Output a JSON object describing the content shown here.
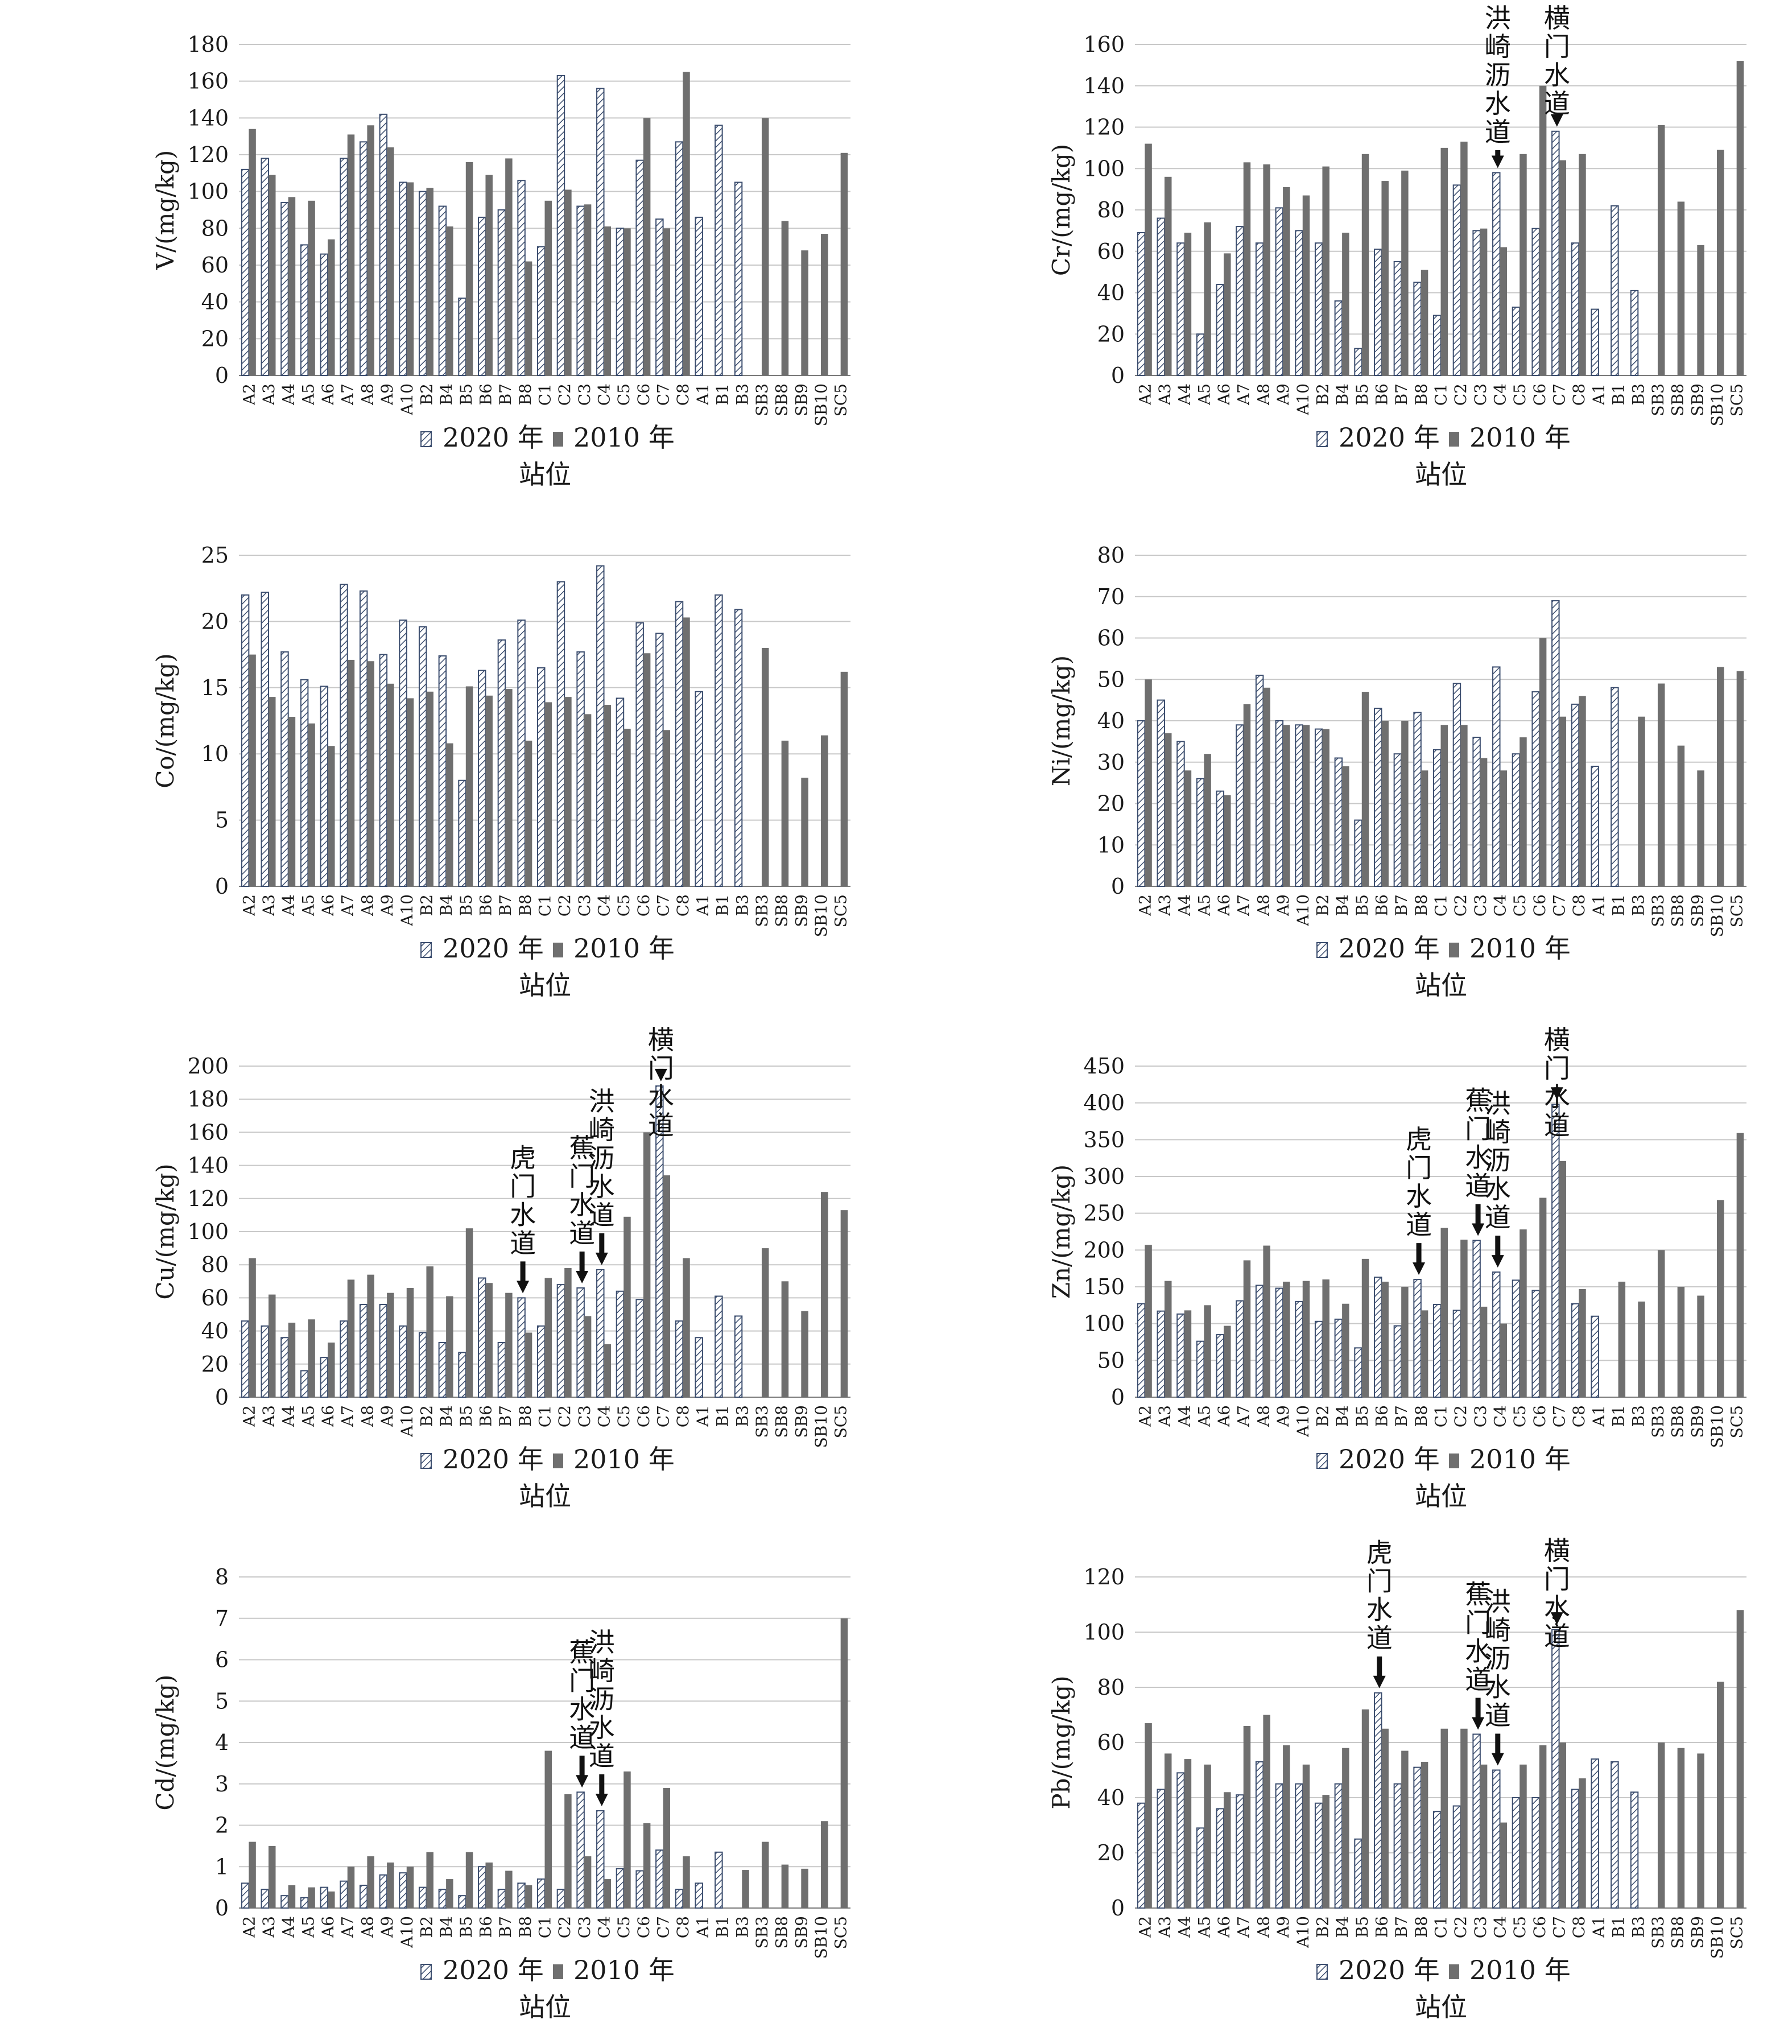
{
  "colors": {
    "bar_2020_fill": "#ffffff",
    "bar_2020_stroke": "#3b4d6e",
    "bar_2020_hatch": "#3b4d6e",
    "bar_2010": "#6f6f6f",
    "grid": "#c8c8c8",
    "text": "#1a1a1a",
    "arrow": "#111111"
  },
  "legend": {
    "s2020": "2020 年",
    "s2010": "2010 年"
  },
  "xlabel": "站位",
  "chart_data": [
    {
      "type": "bar",
      "ylabel": "V/(mg/kg)",
      "ylim": [
        0,
        180
      ],
      "yticks": [
        0,
        20,
        40,
        60,
        80,
        100,
        120,
        140,
        160,
        180
      ],
      "categories": [
        "A2",
        "A3",
        "A4",
        "A5",
        "A6",
        "A7",
        "A8",
        "A9",
        "A10",
        "B2",
        "B4",
        "B5",
        "B6",
        "B7",
        "B8",
        "C1",
        "C2",
        "C3",
        "C4",
        "C5",
        "C6",
        "C7",
        "C8",
        "A1",
        "B1",
        "B3",
        "SB3",
        "SB8",
        "SB9",
        "SB10",
        "SC5"
      ],
      "series": [
        {
          "name": "2020 年",
          "values": [
            112,
            118,
            94,
            71,
            66,
            118,
            127,
            142,
            105,
            100,
            92,
            42,
            86,
            90,
            106,
            70,
            163,
            92,
            156,
            80,
            117,
            85,
            127,
            86,
            136,
            105,
            null,
            null,
            null,
            null,
            null
          ]
        },
        {
          "name": "2010 年",
          "values": [
            134,
            109,
            97,
            95,
            74,
            131,
            136,
            124,
            105,
            102,
            81,
            116,
            109,
            118,
            62,
            95,
            101,
            93,
            81,
            80,
            140,
            80,
            165,
            null,
            null,
            null,
            140,
            84,
            68,
            77,
            121
          ]
        }
      ],
      "annotations": []
    },
    {
      "type": "bar",
      "ylabel": "Cr/(mg/kg)",
      "ylim": [
        0,
        160
      ],
      "yticks": [
        0,
        20,
        40,
        60,
        80,
        100,
        120,
        140,
        160
      ],
      "categories": [
        "A2",
        "A3",
        "A4",
        "A5",
        "A6",
        "A7",
        "A8",
        "A9",
        "A10",
        "B2",
        "B4",
        "B5",
        "B6",
        "B7",
        "B8",
        "C1",
        "C2",
        "C3",
        "C4",
        "C5",
        "C6",
        "C7",
        "C8",
        "A1",
        "B1",
        "B3",
        "SB3",
        "SB8",
        "SB9",
        "SB10",
        "SC5"
      ],
      "series": [
        {
          "name": "2020 年",
          "values": [
            69,
            76,
            64,
            20,
            44,
            72,
            64,
            81,
            70,
            64,
            36,
            13,
            61,
            55,
            45,
            29,
            92,
            70,
            98,
            33,
            71,
            118,
            64,
            32,
            82,
            41,
            null,
            null,
            null,
            null,
            null
          ]
        },
        {
          "name": "2010 年",
          "values": [
            112,
            96,
            69,
            74,
            59,
            103,
            102,
            91,
            87,
            101,
            69,
            107,
            94,
            99,
            51,
            110,
            113,
            71,
            62,
            107,
            140,
            104,
            107,
            null,
            null,
            null,
            121,
            84,
            63,
            109,
            152
          ]
        }
      ],
      "annotations": [
        {
          "text": "洪崎沥水道",
          "category": "C4"
        },
        {
          "text": "横门水道",
          "category": "C7"
        }
      ]
    },
    {
      "type": "bar",
      "ylabel": "Co/(mg/kg)",
      "ylim": [
        0,
        25
      ],
      "yticks": [
        0,
        5,
        10,
        15,
        20,
        25
      ],
      "categories": [
        "A2",
        "A3",
        "A4",
        "A5",
        "A6",
        "A7",
        "A8",
        "A9",
        "A10",
        "B2",
        "B4",
        "B5",
        "B6",
        "B7",
        "B8",
        "C1",
        "C2",
        "C3",
        "C4",
        "C5",
        "C6",
        "C7",
        "C8",
        "A1",
        "B1",
        "B3",
        "SB3",
        "SB8",
        "SB9",
        "SB10",
        "SC5"
      ],
      "series": [
        {
          "name": "2020 年",
          "values": [
            22.0,
            22.2,
            17.7,
            15.6,
            15.1,
            22.8,
            22.3,
            17.5,
            20.1,
            19.6,
            17.4,
            8.0,
            16.3,
            18.6,
            20.1,
            16.5,
            23.0,
            17.7,
            24.2,
            14.2,
            19.9,
            19.1,
            21.5,
            14.7,
            22.0,
            20.9,
            null,
            null,
            null,
            null,
            null
          ]
        },
        {
          "name": "2010 年",
          "values": [
            17.5,
            14.3,
            12.8,
            12.3,
            10.6,
            17.1,
            17.0,
            15.3,
            14.2,
            14.7,
            10.8,
            15.1,
            14.4,
            14.9,
            11.0,
            13.9,
            14.3,
            13.0,
            13.7,
            11.9,
            17.6,
            11.8,
            20.3,
            null,
            null,
            null,
            18.0,
            11.0,
            8.2,
            11.4,
            16.2
          ]
        }
      ],
      "annotations": []
    },
    {
      "type": "bar",
      "ylabel": "Ni/(mg/kg)",
      "ylim": [
        0,
        80
      ],
      "yticks": [
        0,
        10,
        20,
        30,
        40,
        50,
        60,
        70,
        80
      ],
      "categories": [
        "A2",
        "A3",
        "A4",
        "A5",
        "A6",
        "A7",
        "A8",
        "A9",
        "A10",
        "B2",
        "B4",
        "B5",
        "B6",
        "B7",
        "B8",
        "C1",
        "C2",
        "C3",
        "C4",
        "C5",
        "C6",
        "C7",
        "C8",
        "A1",
        "B1",
        "B3",
        "SB3",
        "SB8",
        "SB9",
        "SB10",
        "SC5"
      ],
      "series": [
        {
          "name": "2020 年",
          "values": [
            40,
            45,
            35,
            26,
            23,
            39,
            51,
            40,
            39,
            38,
            31,
            16,
            43,
            32,
            42,
            33,
            49,
            36,
            53,
            32,
            47,
            69,
            44,
            29,
            48,
            null,
            null,
            null,
            null,
            null,
            null
          ]
        },
        {
          "name": "2010 年",
          "values": [
            50,
            37,
            28,
            32,
            22,
            44,
            48,
            39,
            39,
            38,
            29,
            47,
            40,
            40,
            28,
            39,
            39,
            31,
            28,
            36,
            60,
            41,
            46,
            null,
            null,
            41,
            49,
            34,
            28,
            53,
            52
          ]
        }
      ],
      "annotations": []
    },
    {
      "type": "bar",
      "ylabel": "Cu/(mg/kg)",
      "ylim": [
        0,
        200
      ],
      "yticks": [
        0,
        20,
        40,
        60,
        80,
        100,
        120,
        140,
        160,
        180,
        200
      ],
      "categories": [
        "A2",
        "A3",
        "A4",
        "A5",
        "A6",
        "A7",
        "A8",
        "A9",
        "A10",
        "B2",
        "B4",
        "B5",
        "B6",
        "B7",
        "B8",
        "C1",
        "C2",
        "C3",
        "C4",
        "C5",
        "C6",
        "C7",
        "C8",
        "A1",
        "B1",
        "B3",
        "SB3",
        "SB8",
        "SB9",
        "SB10",
        "SC5"
      ],
      "series": [
        {
          "name": "2020 年",
          "values": [
            46,
            43,
            36,
            16,
            24,
            46,
            56,
            56,
            43,
            39,
            33,
            27,
            72,
            33,
            60,
            43,
            68,
            66,
            77,
            64,
            59,
            188,
            46,
            36,
            61,
            49,
            null,
            null,
            null,
            null,
            null
          ]
        },
        {
          "name": "2010 年",
          "values": [
            84,
            62,
            45,
            47,
            33,
            71,
            74,
            63,
            66,
            79,
            61,
            102,
            69,
            63,
            39,
            72,
            78,
            49,
            32,
            109,
            160,
            134,
            84,
            null,
            null,
            null,
            90,
            70,
            52,
            124,
            113
          ]
        }
      ],
      "annotations": [
        {
          "text": "虎门水道",
          "category": "B8"
        },
        {
          "text": "蕉门水道",
          "category": "C3"
        },
        {
          "text": "洪崎沥水道",
          "category": "C4"
        },
        {
          "text": "横门水道",
          "category": "C7"
        }
      ]
    },
    {
      "type": "bar",
      "ylabel": "Zn/(mg/kg)",
      "ylim": [
        0,
        450
      ],
      "yticks": [
        0,
        50,
        100,
        150,
        200,
        250,
        300,
        350,
        400,
        450
      ],
      "categories": [
        "A2",
        "A3",
        "A4",
        "A5",
        "A6",
        "A7",
        "A8",
        "A9",
        "A10",
        "B2",
        "B4",
        "B5",
        "B6",
        "B7",
        "B8",
        "C1",
        "C2",
        "C3",
        "C4",
        "C5",
        "C6",
        "C7",
        "C8",
        "A1",
        "B1",
        "B3",
        "SB3",
        "SB8",
        "SB9",
        "SB10",
        "SC5"
      ],
      "series": [
        {
          "name": "2020 年",
          "values": [
            127,
            117,
            113,
            76,
            85,
            131,
            152,
            148,
            130,
            103,
            106,
            67,
            163,
            97,
            160,
            126,
            118,
            213,
            170,
            159,
            145,
            398,
            127,
            110,
            null,
            null,
            null,
            null,
            null,
            null,
            null
          ]
        },
        {
          "name": "2010 年",
          "values": [
            207,
            158,
            118,
            125,
            97,
            186,
            206,
            157,
            158,
            160,
            127,
            188,
            157,
            150,
            118,
            230,
            214,
            123,
            100,
            228,
            271,
            321,
            147,
            null,
            157,
            130,
            200,
            150,
            138,
            268,
            359
          ]
        }
      ],
      "annotations": [
        {
          "text": "虎门水道",
          "category": "B8"
        },
        {
          "text": "蕉门水道",
          "category": "C3"
        },
        {
          "text": "洪崎沥水道",
          "category": "C4"
        },
        {
          "text": "横门水道",
          "category": "C7"
        }
      ]
    },
    {
      "type": "bar",
      "ylabel": "Cd/(mg/kg)",
      "ylim": [
        0,
        8
      ],
      "yticks": [
        0,
        1,
        2,
        3,
        4,
        5,
        6,
        7,
        8
      ],
      "categories": [
        "A2",
        "A3",
        "A4",
        "A5",
        "A6",
        "A7",
        "A8",
        "A9",
        "A10",
        "B2",
        "B4",
        "B5",
        "B6",
        "B7",
        "B8",
        "C1",
        "C2",
        "C3",
        "C4",
        "C5",
        "C6",
        "C7",
        "C8",
        "A1",
        "B1",
        "B3",
        "SB3",
        "SB8",
        "SB9",
        "SB10",
        "SC5"
      ],
      "series": [
        {
          "name": "2020 年",
          "values": [
            0.6,
            0.45,
            0.3,
            0.25,
            0.5,
            0.65,
            0.55,
            0.8,
            0.85,
            0.5,
            0.45,
            0.3,
            1.0,
            0.45,
            0.6,
            0.7,
            0.45,
            2.8,
            2.35,
            0.95,
            0.9,
            1.4,
            0.45,
            0.6,
            1.35,
            null,
            null,
            null,
            null,
            null,
            null
          ]
        },
        {
          "name": "2010 年",
          "values": [
            1.6,
            1.5,
            0.55,
            0.5,
            0.4,
            1.0,
            1.25,
            1.1,
            1.0,
            1.35,
            0.7,
            1.35,
            1.1,
            0.9,
            0.55,
            3.8,
            2.75,
            1.25,
            0.7,
            3.3,
            2.05,
            2.9,
            1.25,
            null,
            null,
            0.92,
            1.6,
            1.05,
            0.95,
            2.1,
            7.0
          ]
        }
      ],
      "annotations": [
        {
          "text": "蕉门水道",
          "category": "C3"
        },
        {
          "text": "洪崎沥水道",
          "category": "C4"
        }
      ]
    },
    {
      "type": "bar",
      "ylabel": "Pb/(mg/kg)",
      "ylim": [
        0,
        120
      ],
      "yticks": [
        0,
        20,
        40,
        60,
        80,
        100,
        120
      ],
      "categories": [
        "A2",
        "A3",
        "A4",
        "A5",
        "A6",
        "A7",
        "A8",
        "A9",
        "A10",
        "B2",
        "B4",
        "B5",
        "B6",
        "B7",
        "B8",
        "C1",
        "C2",
        "C3",
        "C4",
        "C5",
        "C6",
        "C7",
        "C8",
        "A1",
        "B1",
        "B3",
        "SB3",
        "SB8",
        "SB9",
        "SB10",
        "SC5"
      ],
      "series": [
        {
          "name": "2020 年",
          "values": [
            38,
            43,
            49,
            29,
            36,
            41,
            53,
            45,
            45,
            38,
            45,
            25,
            78,
            45,
            51,
            35,
            37,
            63,
            50,
            40,
            40,
            101,
            43,
            54,
            53,
            42,
            null,
            null,
            null,
            null,
            null
          ]
        },
        {
          "name": "2010 年",
          "values": [
            67,
            56,
            54,
            52,
            42,
            66,
            70,
            59,
            52,
            41,
            58,
            72,
            65,
            57,
            53,
            65,
            65,
            52,
            31,
            52,
            59,
            60,
            47,
            null,
            null,
            null,
            60,
            58,
            56,
            82,
            108
          ]
        }
      ],
      "annotations": [
        {
          "text": "虎门水道",
          "category": "B6"
        },
        {
          "text": "蕉门水道",
          "category": "C3"
        },
        {
          "text": "洪崎沥水道",
          "category": "C4"
        },
        {
          "text": "横门水道",
          "category": "C7"
        }
      ]
    }
  ]
}
